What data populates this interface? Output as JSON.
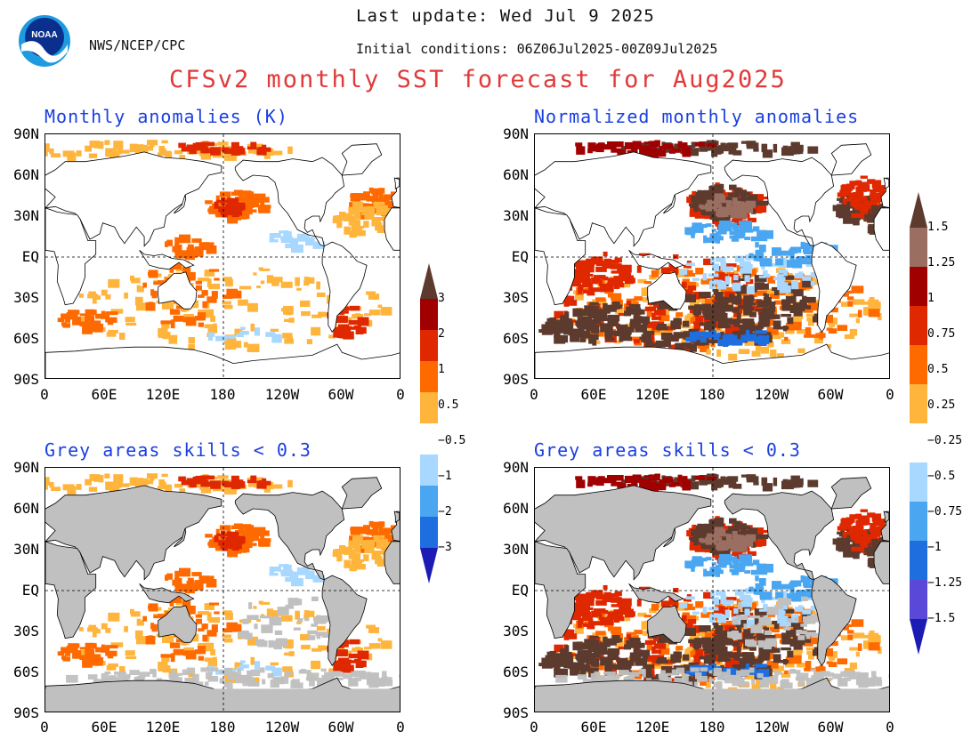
{
  "header": {
    "org": "NWS/NCEP/CPC",
    "last_update": "Last update: Wed Jul 9 2025",
    "initial_conditions": "Initial conditions: 06Z06Jul2025-00Z09Jul2025",
    "title": "CFSv2 monthly SST forecast for Aug2025",
    "logo_text": "NOAA"
  },
  "panels": {
    "tl": {
      "title": "Monthly anomalies (K)"
    },
    "tr": {
      "title": "Normalized monthly anomalies"
    },
    "bl": {
      "title": "Grey areas skills < 0.3"
    },
    "br": {
      "title": "Grey areas skills < 0.3"
    }
  },
  "axes": {
    "lat_labels": [
      "90N",
      "60N",
      "30N",
      "EQ",
      "30S",
      "60S",
      "90S"
    ],
    "lon_labels": [
      "0",
      "60E",
      "120E",
      "180",
      "120W",
      "60W",
      "0"
    ]
  },
  "colorbar_k": {
    "labels": [
      "3",
      "2",
      "1",
      "0.5",
      "−0.5",
      "−1",
      "−2",
      "−3"
    ],
    "colors": [
      "#5c3a2e",
      "#a00000",
      "#e02800",
      "#ff6a00",
      "#ffb43c",
      "#ffffff",
      "#a8d8ff",
      "#4aa6f0",
      "#1e6ee0",
      "#1c1cb4"
    ]
  },
  "colorbar_norm": {
    "labels": [
      "1.5",
      "1.25",
      "1",
      "0.75",
      "0.5",
      "0.25",
      "−0.25",
      "−0.5",
      "−0.75",
      "−1",
      "−1.25",
      "−1.5"
    ],
    "colors": [
      "#5c3a2e",
      "#9a6e60",
      "#a00000",
      "#e02800",
      "#ff6a00",
      "#ffb43c",
      "#ffffff",
      "#a8d8ff",
      "#4aa6f0",
      "#1e6ee0",
      "#5a48d8",
      "#1c1cb4"
    ]
  },
  "colors": {
    "land": "#ffffff",
    "grey_skill": "#c0c0c0",
    "title_red": "#e03a3a",
    "title_blue": "#1a3fe0"
  }
}
